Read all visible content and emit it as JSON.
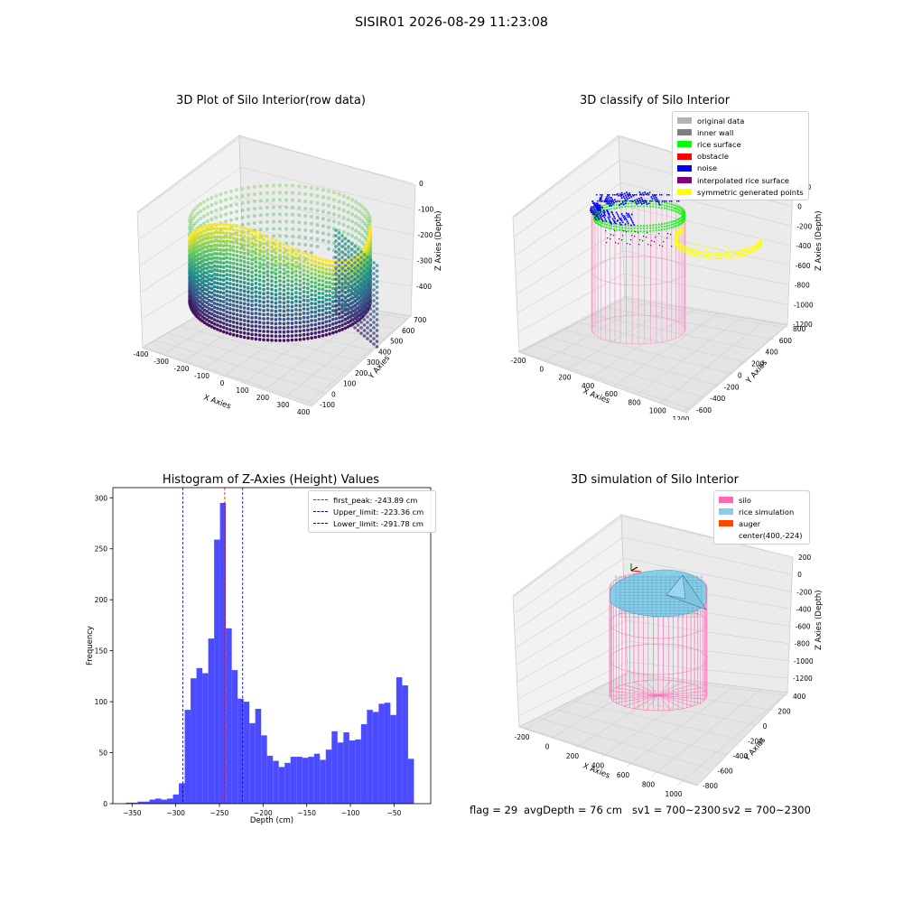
{
  "suptitle": "SISIR01 2026-08-29 11:23:08",
  "footer": {
    "flag": "flag = 29",
    "avg": "avgDepth = 76 cm",
    "sv1": "sv1 = 700~2300",
    "sv2": "sv2 = 700~2300"
  },
  "chart_data": [
    {
      "type": "scatter3d",
      "title": "3D Plot of Silo Interior(row data)",
      "xlabel": "X Axies",
      "ylabel": "Y Axies",
      "zlabel": "Z Axies (Depth)",
      "xticks": [
        "-400",
        "-300",
        "-200",
        "-100",
        "0",
        "100",
        "200",
        "300",
        "400"
      ],
      "yticks": [
        "-100",
        "0",
        "100",
        "200",
        "300",
        "400",
        "500",
        "600",
        "700"
      ],
      "zticks": [
        "0",
        "-100",
        "-200",
        "-300",
        "-400"
      ],
      "colormap": "viridis"
    },
    {
      "type": "scatter3d",
      "title": "3D classify of Silo Interior",
      "xlabel": "X Axies",
      "ylabel": "Y Axies",
      "zlabel": "Z Axies (Depth)",
      "xticks": [
        "-200",
        "0",
        "200",
        "400",
        "600",
        "800",
        "1000",
        "1200"
      ],
      "yticks": [
        "-600",
        "-400",
        "-200",
        "0",
        "200",
        "400",
        "600",
        "800"
      ],
      "zticks": [
        "200",
        "0",
        "-200",
        "-400",
        "-600",
        "-800",
        "-1000",
        "-1200"
      ],
      "legend": [
        {
          "label": "original data",
          "color": "#b3b3b3"
        },
        {
          "label": "inner wall",
          "color": "#808080"
        },
        {
          "label": "rice surface",
          "color": "#00ff00"
        },
        {
          "label": "obstacle",
          "color": "#ff0000"
        },
        {
          "label": "noise",
          "color": "#0000ff"
        },
        {
          "label": "interpolated rice surface",
          "color": "#800080"
        },
        {
          "label": "symmetric generated points",
          "color": "#ffff00"
        }
      ]
    },
    {
      "type": "bar",
      "title": "Histogram of Z-Axies (Height) Values",
      "xlabel": "Depth (cm)",
      "ylabel": "Frequency",
      "xlim": [
        -372,
        -8
      ],
      "ylim": [
        0,
        310
      ],
      "xticks": [
        -350,
        -300,
        -250,
        -200,
        -150,
        -100,
        -50
      ],
      "yticks": [
        0,
        50,
        100,
        150,
        200,
        250,
        300
      ],
      "bin_start": -357,
      "bin_width": 6.73,
      "values": [
        1,
        1,
        2,
        2,
        4,
        5,
        4,
        5,
        9,
        20,
        92,
        123,
        133,
        128,
        162,
        259,
        295,
        172,
        131,
        103,
        100,
        79,
        93,
        67,
        47,
        42,
        36,
        40,
        46,
        46,
        45,
        46,
        49,
        43,
        53,
        71,
        60,
        70,
        62,
        63,
        78,
        92,
        90,
        98,
        99,
        87,
        124,
        116,
        44
      ],
      "bar_color": "#4b4bff",
      "lines": [
        {
          "label": "first_peak: -243.89 cm",
          "x": -243.89,
          "color": "#ff0000"
        },
        {
          "label": "Upper_limit: -223.36 cm",
          "x": -223.36,
          "color": "#0000aa"
        },
        {
          "label": "Lower_limit: -291.78 cm",
          "x": -291.78,
          "color": "#0000aa"
        }
      ]
    },
    {
      "type": "surface3d",
      "title": "3D simulation of Silo Interior",
      "xlabel": "X Axies",
      "ylabel": "Y Axies",
      "zlabel": "Z Axies (Depth)",
      "xticks": [
        "-200",
        "0",
        "200",
        "400",
        "600",
        "800",
        "1000"
      ],
      "yticks": [
        "-800",
        "-600",
        "-400",
        "-200",
        "0",
        "200",
        "400"
      ],
      "zticks": [
        "200",
        "0",
        "-200",
        "-400",
        "-600",
        "-800",
        "-1000",
        "-1200"
      ],
      "legend": [
        {
          "label": "silo",
          "color": "#ff69b4"
        },
        {
          "label": "rice simulation",
          "color": "#87ceeb"
        },
        {
          "label": "auger",
          "color": "#ff4500"
        },
        {
          "label": "center(400,-224)",
          "color": ""
        }
      ]
    }
  ]
}
